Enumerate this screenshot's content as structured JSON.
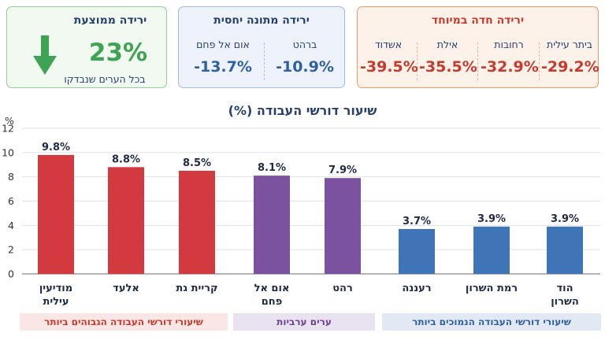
{
  "cards": {
    "sharp_drop": {
      "title": "ירידה חדה במיוחד",
      "items": [
        {
          "name": "ביתר עילית",
          "value": "-29.2%"
        },
        {
          "name": "רחובות",
          "value": "-32.9%"
        },
        {
          "name": "אילת",
          "value": "-35.5%"
        },
        {
          "name": "אשדוד",
          "value": "-39.5%"
        }
      ]
    },
    "moderate_drop": {
      "title": "ירידה מתונה יחסית",
      "items": [
        {
          "name": "ברהט",
          "value": "-10.9%"
        },
        {
          "name": "אום אל פחם",
          "value": "-13.7%"
        }
      ]
    },
    "average_drop": {
      "title": "ירידה ממוצעת",
      "value": "23%",
      "subtitle": "בכל הערים שנבדקו",
      "icon": "arrow-down-icon"
    }
  },
  "groups": {
    "high": "שיעורי דורשי העבודה הגבוהים ביותר",
    "arab": "ערים ערביות",
    "low": "שיעורי דורשי העבודה הנמוכים ביותר"
  },
  "chart_data": {
    "type": "bar",
    "title": "שיעור דורשי העבודה (%)",
    "ylabel": "%",
    "ylim": [
      0,
      12
    ],
    "yticks": [
      0,
      2,
      4,
      6,
      8,
      10,
      12
    ],
    "grid": true,
    "categories": [
      [
        "מודיעין",
        "עילית"
      ],
      [
        "אלעד"
      ],
      [
        "קריית גת"
      ],
      [
        "אום אל",
        "פחם"
      ],
      [
        "רהט"
      ],
      [
        "רעננה"
      ],
      [
        "רמת השרון"
      ],
      [
        "הוד",
        "השרון"
      ]
    ],
    "values": [
      9.8,
      8.8,
      8.5,
      8.1,
      7.9,
      3.7,
      3.9,
      3.9
    ],
    "labels": [
      "9.8%",
      "8.8%",
      "8.5%",
      "8.1%",
      "7.9%",
      "3.7%",
      "3.9%",
      "3.9%"
    ],
    "colors": [
      "#d33a3f",
      "#d33a3f",
      "#d33a3f",
      "#7a529f",
      "#7a529f",
      "#3f74b6",
      "#3f74b6",
      "#3f74b6"
    ]
  }
}
